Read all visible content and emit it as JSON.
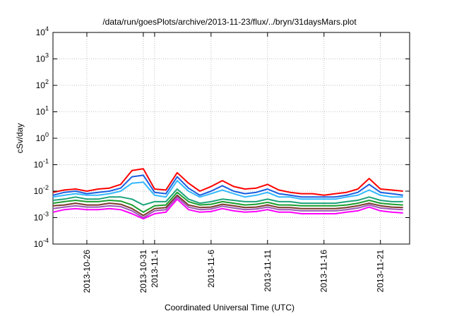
{
  "chart_data": {
    "type": "line",
    "title": "/data/run/goesPlots/archive/2013-11-23/flux/../bryn/31daysMars.plot",
    "xlabel": "Coordinated Universal Time (UTC)",
    "ylabel": "cSv/day",
    "yscale": "log",
    "ylim": [
      0.0001,
      10000
    ],
    "xlim": [
      "2013-10-23",
      "2013-11-23T14:00"
    ],
    "grid": true,
    "y_ticks": [
      {
        "value": 0.0001,
        "base": "10",
        "exp": "-4"
      },
      {
        "value": 0.001,
        "base": "10",
        "exp": "-3"
      },
      {
        "value": 0.01,
        "base": "10",
        "exp": "-2"
      },
      {
        "value": 0.1,
        "base": "10",
        "exp": "-1"
      },
      {
        "value": 1,
        "base": "10",
        "exp": "0"
      },
      {
        "value": 10,
        "base": "10",
        "exp": "1"
      },
      {
        "value": 100,
        "base": "10",
        "exp": "2"
      },
      {
        "value": 1000,
        "base": "10",
        "exp": "3"
      },
      {
        "value": 10000,
        "base": "10",
        "exp": "4"
      }
    ],
    "x_ticks": [
      {
        "date": "2013-10-26",
        "label": "2013-10-26"
      },
      {
        "date": "2013-10-31",
        "label": "2013-10-31"
      },
      {
        "date": "2013-11-01",
        "label": "2013-11-1"
      },
      {
        "date": "2013-11-06",
        "label": "2013-11-6"
      },
      {
        "date": "2013-11-11",
        "label": "2013-11-11"
      },
      {
        "date": "2013-11-16",
        "label": "2013-11-16"
      },
      {
        "date": "2013-11-21",
        "label": "2013-11-21"
      }
    ],
    "x": [
      "2013-10-23",
      "2013-10-24",
      "2013-10-25",
      "2013-10-26",
      "2013-10-27",
      "2013-10-28",
      "2013-10-29",
      "2013-10-30",
      "2013-10-31",
      "2013-11-01",
      "2013-11-02",
      "2013-11-03",
      "2013-11-04",
      "2013-11-05",
      "2013-11-06",
      "2013-11-07",
      "2013-11-08",
      "2013-11-09",
      "2013-11-10",
      "2013-11-11",
      "2013-11-12",
      "2013-11-13",
      "2013-11-14",
      "2013-11-15",
      "2013-11-16",
      "2013-11-17",
      "2013-11-18",
      "2013-11-19",
      "2013-11-20",
      "2013-11-21",
      "2013-11-22",
      "2013-11-23"
    ],
    "series": [
      {
        "color": "#ff0000",
        "values": [
          0.009,
          0.011,
          0.012,
          0.01,
          0.012,
          0.013,
          0.018,
          0.06,
          0.07,
          0.012,
          0.011,
          0.05,
          0.02,
          0.01,
          0.015,
          0.025,
          0.015,
          0.012,
          0.013,
          0.018,
          0.011,
          0.009,
          0.008,
          0.008,
          0.007,
          0.008,
          0.009,
          0.012,
          0.03,
          0.012,
          0.011,
          0.01
        ]
      },
      {
        "color": "#1a5fe0",
        "values": [
          0.007,
          0.009,
          0.01,
          0.008,
          0.009,
          0.01,
          0.013,
          0.035,
          0.04,
          0.009,
          0.008,
          0.035,
          0.013,
          0.007,
          0.01,
          0.016,
          0.01,
          0.008,
          0.009,
          0.012,
          0.008,
          0.007,
          0.006,
          0.006,
          0.006,
          0.006,
          0.007,
          0.009,
          0.018,
          0.009,
          0.008,
          0.007
        ]
      },
      {
        "color": "#33b8ff",
        "values": [
          0.006,
          0.007,
          0.008,
          0.007,
          0.007,
          0.008,
          0.01,
          0.02,
          0.022,
          0.007,
          0.006,
          0.025,
          0.01,
          0.006,
          0.008,
          0.011,
          0.008,
          0.006,
          0.007,
          0.009,
          0.006,
          0.006,
          0.005,
          0.005,
          0.005,
          0.005,
          0.006,
          0.007,
          0.011,
          0.007,
          0.006,
          0.006
        ]
      },
      {
        "color": "#1aa37a",
        "values": [
          0.0045,
          0.005,
          0.006,
          0.005,
          0.005,
          0.006,
          0.006,
          0.005,
          0.003,
          0.004,
          0.004,
          0.012,
          0.005,
          0.0035,
          0.004,
          0.005,
          0.0045,
          0.004,
          0.004,
          0.005,
          0.004,
          0.004,
          0.0035,
          0.0035,
          0.0035,
          0.0035,
          0.004,
          0.0045,
          0.006,
          0.0045,
          0.004,
          0.004
        ]
      },
      {
        "color": "#1a9e2e",
        "values": [
          0.0035,
          0.004,
          0.0045,
          0.004,
          0.004,
          0.0045,
          0.0042,
          0.003,
          0.0016,
          0.0028,
          0.003,
          0.009,
          0.004,
          0.003,
          0.0032,
          0.004,
          0.0035,
          0.003,
          0.0032,
          0.0038,
          0.003,
          0.003,
          0.0028,
          0.0028,
          0.0028,
          0.0028,
          0.003,
          0.0035,
          0.0045,
          0.0035,
          0.0032,
          0.003
        ]
      },
      {
        "color": "#7a3b2a",
        "values": [
          0.0028,
          0.003,
          0.0035,
          0.003,
          0.003,
          0.0035,
          0.0032,
          0.0022,
          0.0012,
          0.0022,
          0.0024,
          0.007,
          0.003,
          0.0024,
          0.0025,
          0.0032,
          0.0028,
          0.0024,
          0.0025,
          0.003,
          0.0024,
          0.0024,
          0.0022,
          0.0022,
          0.0022,
          0.0022,
          0.0024,
          0.0028,
          0.0035,
          0.0028,
          0.0025,
          0.0024
        ]
      },
      {
        "color": "#9b59b6",
        "values": [
          0.0022,
          0.0025,
          0.0028,
          0.0025,
          0.0025,
          0.0028,
          0.0026,
          0.0018,
          0.001,
          0.0018,
          0.002,
          0.006,
          0.0025,
          0.002,
          0.0021,
          0.0027,
          0.0023,
          0.002,
          0.0021,
          0.0025,
          0.002,
          0.002,
          0.0018,
          0.0018,
          0.0018,
          0.0018,
          0.002,
          0.0023,
          0.003,
          0.0023,
          0.0021,
          0.002
        ]
      },
      {
        "color": "#ff00ff",
        "values": [
          0.0016,
          0.002,
          0.0022,
          0.002,
          0.002,
          0.0022,
          0.002,
          0.0014,
          0.0009,
          0.0014,
          0.0016,
          0.005,
          0.002,
          0.0016,
          0.0017,
          0.0022,
          0.0018,
          0.0016,
          0.0017,
          0.002,
          0.0016,
          0.0016,
          0.0014,
          0.0014,
          0.0014,
          0.0014,
          0.0016,
          0.0018,
          0.0025,
          0.0018,
          0.0016,
          0.0015
        ]
      }
    ]
  }
}
